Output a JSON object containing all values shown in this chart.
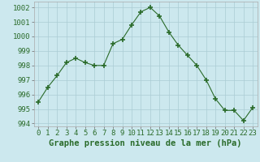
{
  "x": [
    0,
    1,
    2,
    3,
    4,
    5,
    6,
    7,
    8,
    9,
    10,
    11,
    12,
    13,
    14,
    15,
    16,
    17,
    18,
    19,
    20,
    21,
    22,
    23
  ],
  "y": [
    995.5,
    996.5,
    997.3,
    998.2,
    998.5,
    998.2,
    998.0,
    998.0,
    999.5,
    999.8,
    1000.8,
    1001.7,
    1002.0,
    1001.4,
    1000.3,
    999.4,
    998.7,
    998.0,
    997.0,
    995.7,
    994.9,
    994.9,
    994.2,
    995.1
  ],
  "line_color": "#2a6b2a",
  "marker_color": "#2a6b2a",
  "bg_color": "#cce8ee",
  "grid_color": "#aaccd4",
  "title": "Graphe pression niveau de la mer (hPa)",
  "ylim": [
    993.8,
    1002.4
  ],
  "yticks": [
    994,
    995,
    996,
    997,
    998,
    999,
    1000,
    1001,
    1002
  ],
  "xlim": [
    -0.5,
    23.5
  ],
  "xticks": [
    0,
    1,
    2,
    3,
    4,
    5,
    6,
    7,
    8,
    9,
    10,
    11,
    12,
    13,
    14,
    15,
    16,
    17,
    18,
    19,
    20,
    21,
    22,
    23
  ],
  "title_fontsize": 7.5,
  "tick_fontsize": 6.5
}
